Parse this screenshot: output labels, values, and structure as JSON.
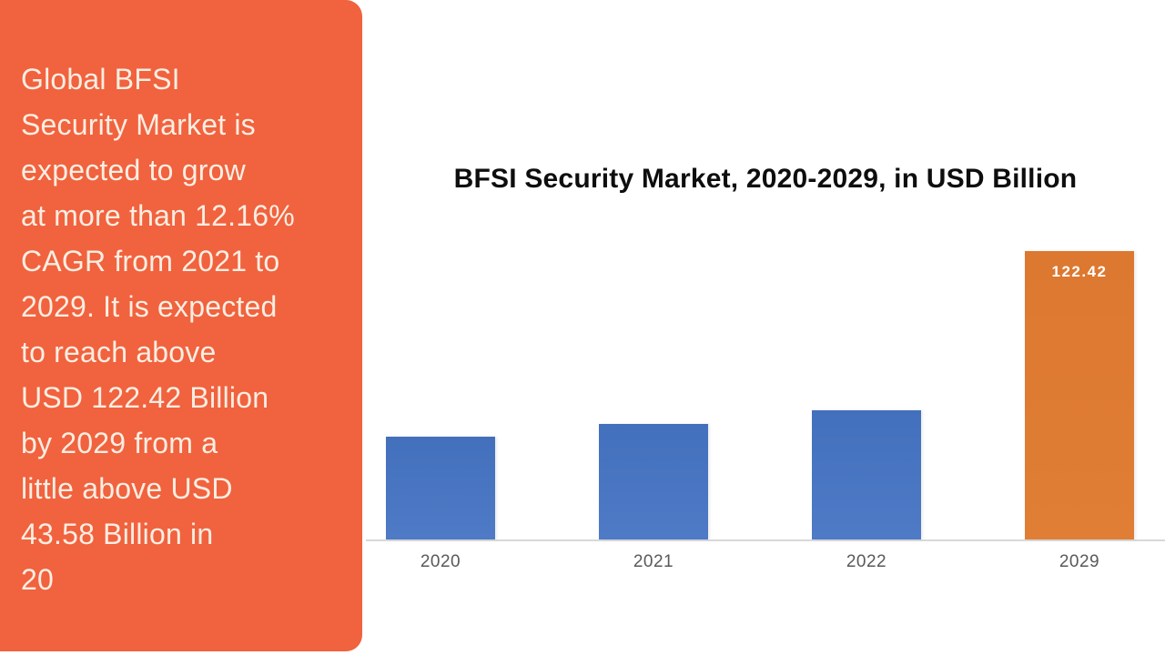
{
  "panel": {
    "background": "#F1623E",
    "text_color": "#FAEEE2",
    "text": "Global BFSI\nSecurity Market is\nexpected to grow\nat more than 12.16%\nCAGR from 2021 to\n2029. It is expected\nto reach above\nUSD 122.42 Billion\nby 2029 from a\nlittle above USD\n43.58 Billion in\n20"
  },
  "chart": {
    "title": "BFSI Security Market, 2020-2029, in USD Billion",
    "title_color": "#0E0E0E",
    "axis_line_color": "#D9D9D9",
    "axis_label_color": "#595959",
    "bar_color_default": "#4472C4",
    "bar_color_highlight": "#DF7A31",
    "bar_label_color": "#FFFFFF"
  },
  "chart_data": {
    "type": "bar",
    "title": "BFSI Security Market, 2020-2029, in USD Billion",
    "categories": [
      "2020",
      "2021",
      "2022",
      "2029"
    ],
    "values": [
      43.58,
      48.9,
      54.8,
      122.42
    ],
    "data_labels": [
      "",
      "",
      "",
      "122.42"
    ],
    "highlight_index": 3,
    "highlight_color": "#DF7A31",
    "default_color": "#4472C4",
    "xlabel": "",
    "ylabel": "USD Billion",
    "ylim": [
      0,
      130
    ],
    "grid": false,
    "legend": false,
    "x_axis_visible": true,
    "y_axis_visible": false
  }
}
